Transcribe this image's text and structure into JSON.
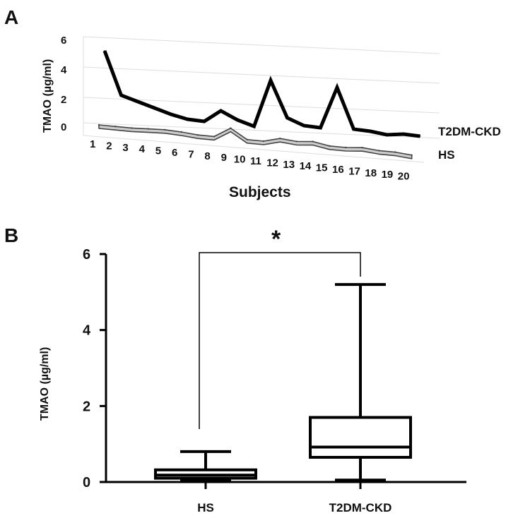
{
  "chart_data": [
    {
      "type": "line",
      "panel_label": "A",
      "title": "",
      "xlabel": "Subjects",
      "ylabel": "TMAO (µg/ml)",
      "ylim": [
        0,
        6
      ],
      "yticks": [
        "0",
        "2",
        "4",
        "6"
      ],
      "categories": [
        "1",
        "2",
        "3",
        "4",
        "5",
        "6",
        "7",
        "8",
        "9",
        "10",
        "11",
        "12",
        "13",
        "14",
        "15",
        "16",
        "17",
        "18",
        "19",
        "20"
      ],
      "grid": true,
      "series": [
        {
          "name": "T2DM-CKD",
          "color": "#000000",
          "values": [
            5.2,
            2.1,
            1.7,
            1.3,
            0.9,
            0.6,
            0.5,
            1.3,
            0.7,
            0.3,
            3.6,
            1.0,
            0.5,
            0.4,
            3.3,
            0.4,
            0.3,
            0.1,
            0.2,
            0.1
          ]
        },
        {
          "name": "HS",
          "color": "#cccccc",
          "values": [
            0.05,
            0.05,
            0.05,
            0.1,
            0.15,
            0.1,
            0.0,
            0.0,
            0.7,
            0.0,
            0.0,
            0.3,
            0.2,
            0.3,
            0.1,
            0.1,
            0.2,
            0.1,
            0.1,
            0.0
          ]
        }
      ]
    },
    {
      "type": "box",
      "panel_label": "B",
      "title": "",
      "xlabel": "",
      "ylabel": "TMAO (µg/ml)",
      "ylim": [
        0,
        6
      ],
      "yticks": [
        "0",
        "2",
        "4",
        "6"
      ],
      "categories": [
        "HS",
        "T2DM-CKD"
      ],
      "series": [
        {
          "name": "HS",
          "min": 0.05,
          "q1": 0.1,
          "median": 0.18,
          "q3": 0.32,
          "max": 0.8
        },
        {
          "name": "T2DM-CKD",
          "min": 0.05,
          "q1": 0.65,
          "median": 0.92,
          "q3": 1.7,
          "max": 5.2
        }
      ],
      "annotation": {
        "text": "*",
        "between": [
          "HS",
          "T2DM-CKD"
        ]
      }
    }
  ]
}
